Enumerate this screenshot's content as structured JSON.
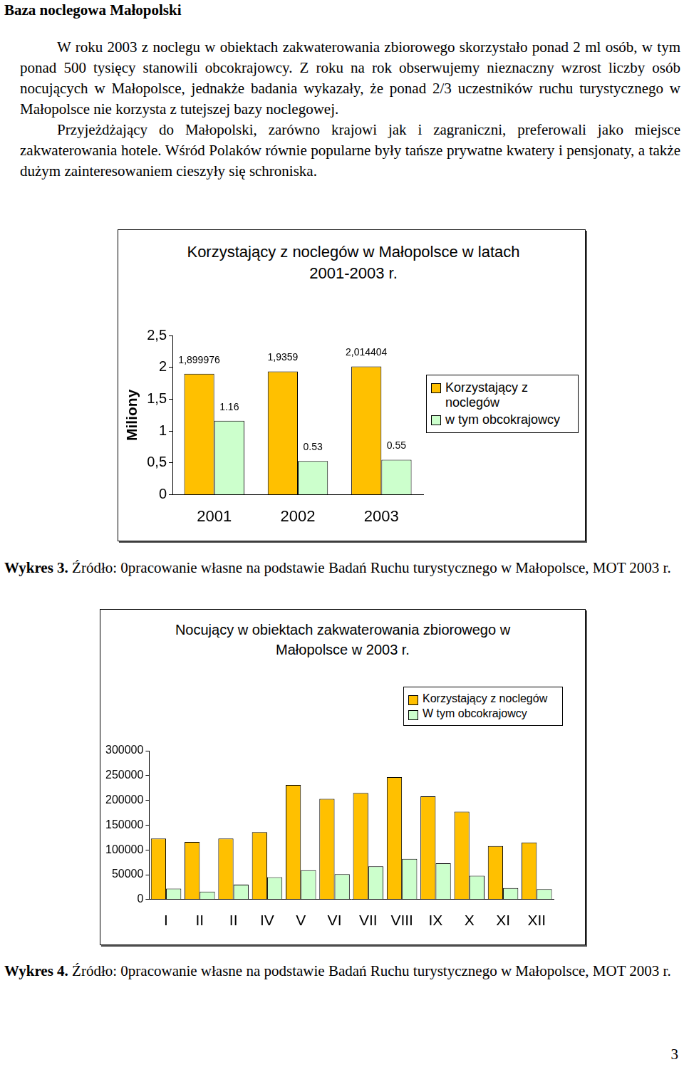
{
  "document": {
    "title": "Baza noclegowa Małopolski",
    "paragraphs": [
      "W roku 2003 z noclegu w obiektach zakwaterowania zbiorowego skorzystało ponad 2 ml osób, w tym ponad 500 tysięcy stanowili obcokrajowcy. Z roku na rok obserwujemy nieznaczny wzrost liczby osób nocujących w Małopolsce, jednakże badania wykazały, że ponad 2/3 uczestników ruchu turystycznego w Małopolsce nie korzysta z tutejszej bazy noclegowej.",
      "Przyjeżdżający do Małopolski, zarówno krajowi jak i zagraniczni, preferowali jako miejsce zakwaterowania hotele. Wśród Polaków równie popularne były tańsze prywatne kwatery i pensjonaty, a także dużym zainteresowaniem cieszyły się schroniska."
    ],
    "captions": [
      {
        "label": "Wykres 3.",
        "text": "Źródło: 0pracowanie własne na podstawie Badań Ruchu turystycznego w Małopolsce, MOT 2003 r."
      },
      {
        "label": "Wykres 4.",
        "text": "Źródło: 0pracowanie własne na podstawie Badań Ruchu turystycznego w Małopolsce, MOT 2003 r."
      }
    ],
    "page_number": 3
  },
  "chart_data": [
    {
      "type": "bar",
      "title": "Korzystający z noclegów w Małopolsce w latach 2001-2003 r.",
      "y_label": "Miliony",
      "categories": [
        "2001",
        "2002",
        "2003"
      ],
      "series": [
        {
          "name": "Korzystający z noclegów",
          "color": "#ffc000",
          "values": [
            1.899976,
            1.9359,
            2.014404
          ],
          "value_labels": [
            "1,899976",
            "1,9359",
            "2,014404"
          ]
        },
        {
          "name": "w tym obcokrajowcy",
          "color": "#ccffcc",
          "values": [
            1.16,
            0.53,
            0.55
          ]
        }
      ],
      "ylim": [
        0,
        2.5
      ],
      "yticks": [
        0,
        {
          "value": 0.5,
          "label": "0,5"
        },
        1,
        {
          "value": 1.5,
          "label": "1,5"
        },
        2,
        {
          "value": 2.5,
          "label": "2,5"
        }
      ],
      "grid": false,
      "legend": "right",
      "data_labels": true
    },
    {
      "type": "bar",
      "title": "Nocujący w obiektach zakwaterowania zbiorowego w Małopolsce w 2003 r.",
      "categories": [
        "I",
        "II",
        "II",
        "IV",
        "V",
        "VI",
        "VII",
        "VIII",
        "IX",
        "X",
        "XI",
        "XII"
      ],
      "series": [
        {
          "name": "Korzystający z noclegów",
          "color": "#ffc000",
          "values": [
            123000,
            116000,
            123000,
            136000,
            231000,
            203000,
            215000,
            247000,
            208000,
            177000,
            108000,
            115000
          ]
        },
        {
          "name": "W tym obcokrajowcy",
          "color": "#ccffcc",
          "values": [
            22000,
            16000,
            30000,
            45000,
            59000,
            51000,
            67000,
            82000,
            73000,
            48000,
            23000,
            21000
          ]
        }
      ],
      "ylim": [
        0,
        300000
      ],
      "yticks": [
        0,
        50000,
        100000,
        150000,
        200000,
        250000,
        300000
      ],
      "grid": false,
      "legend": "top-right",
      "data_labels": false
    }
  ]
}
